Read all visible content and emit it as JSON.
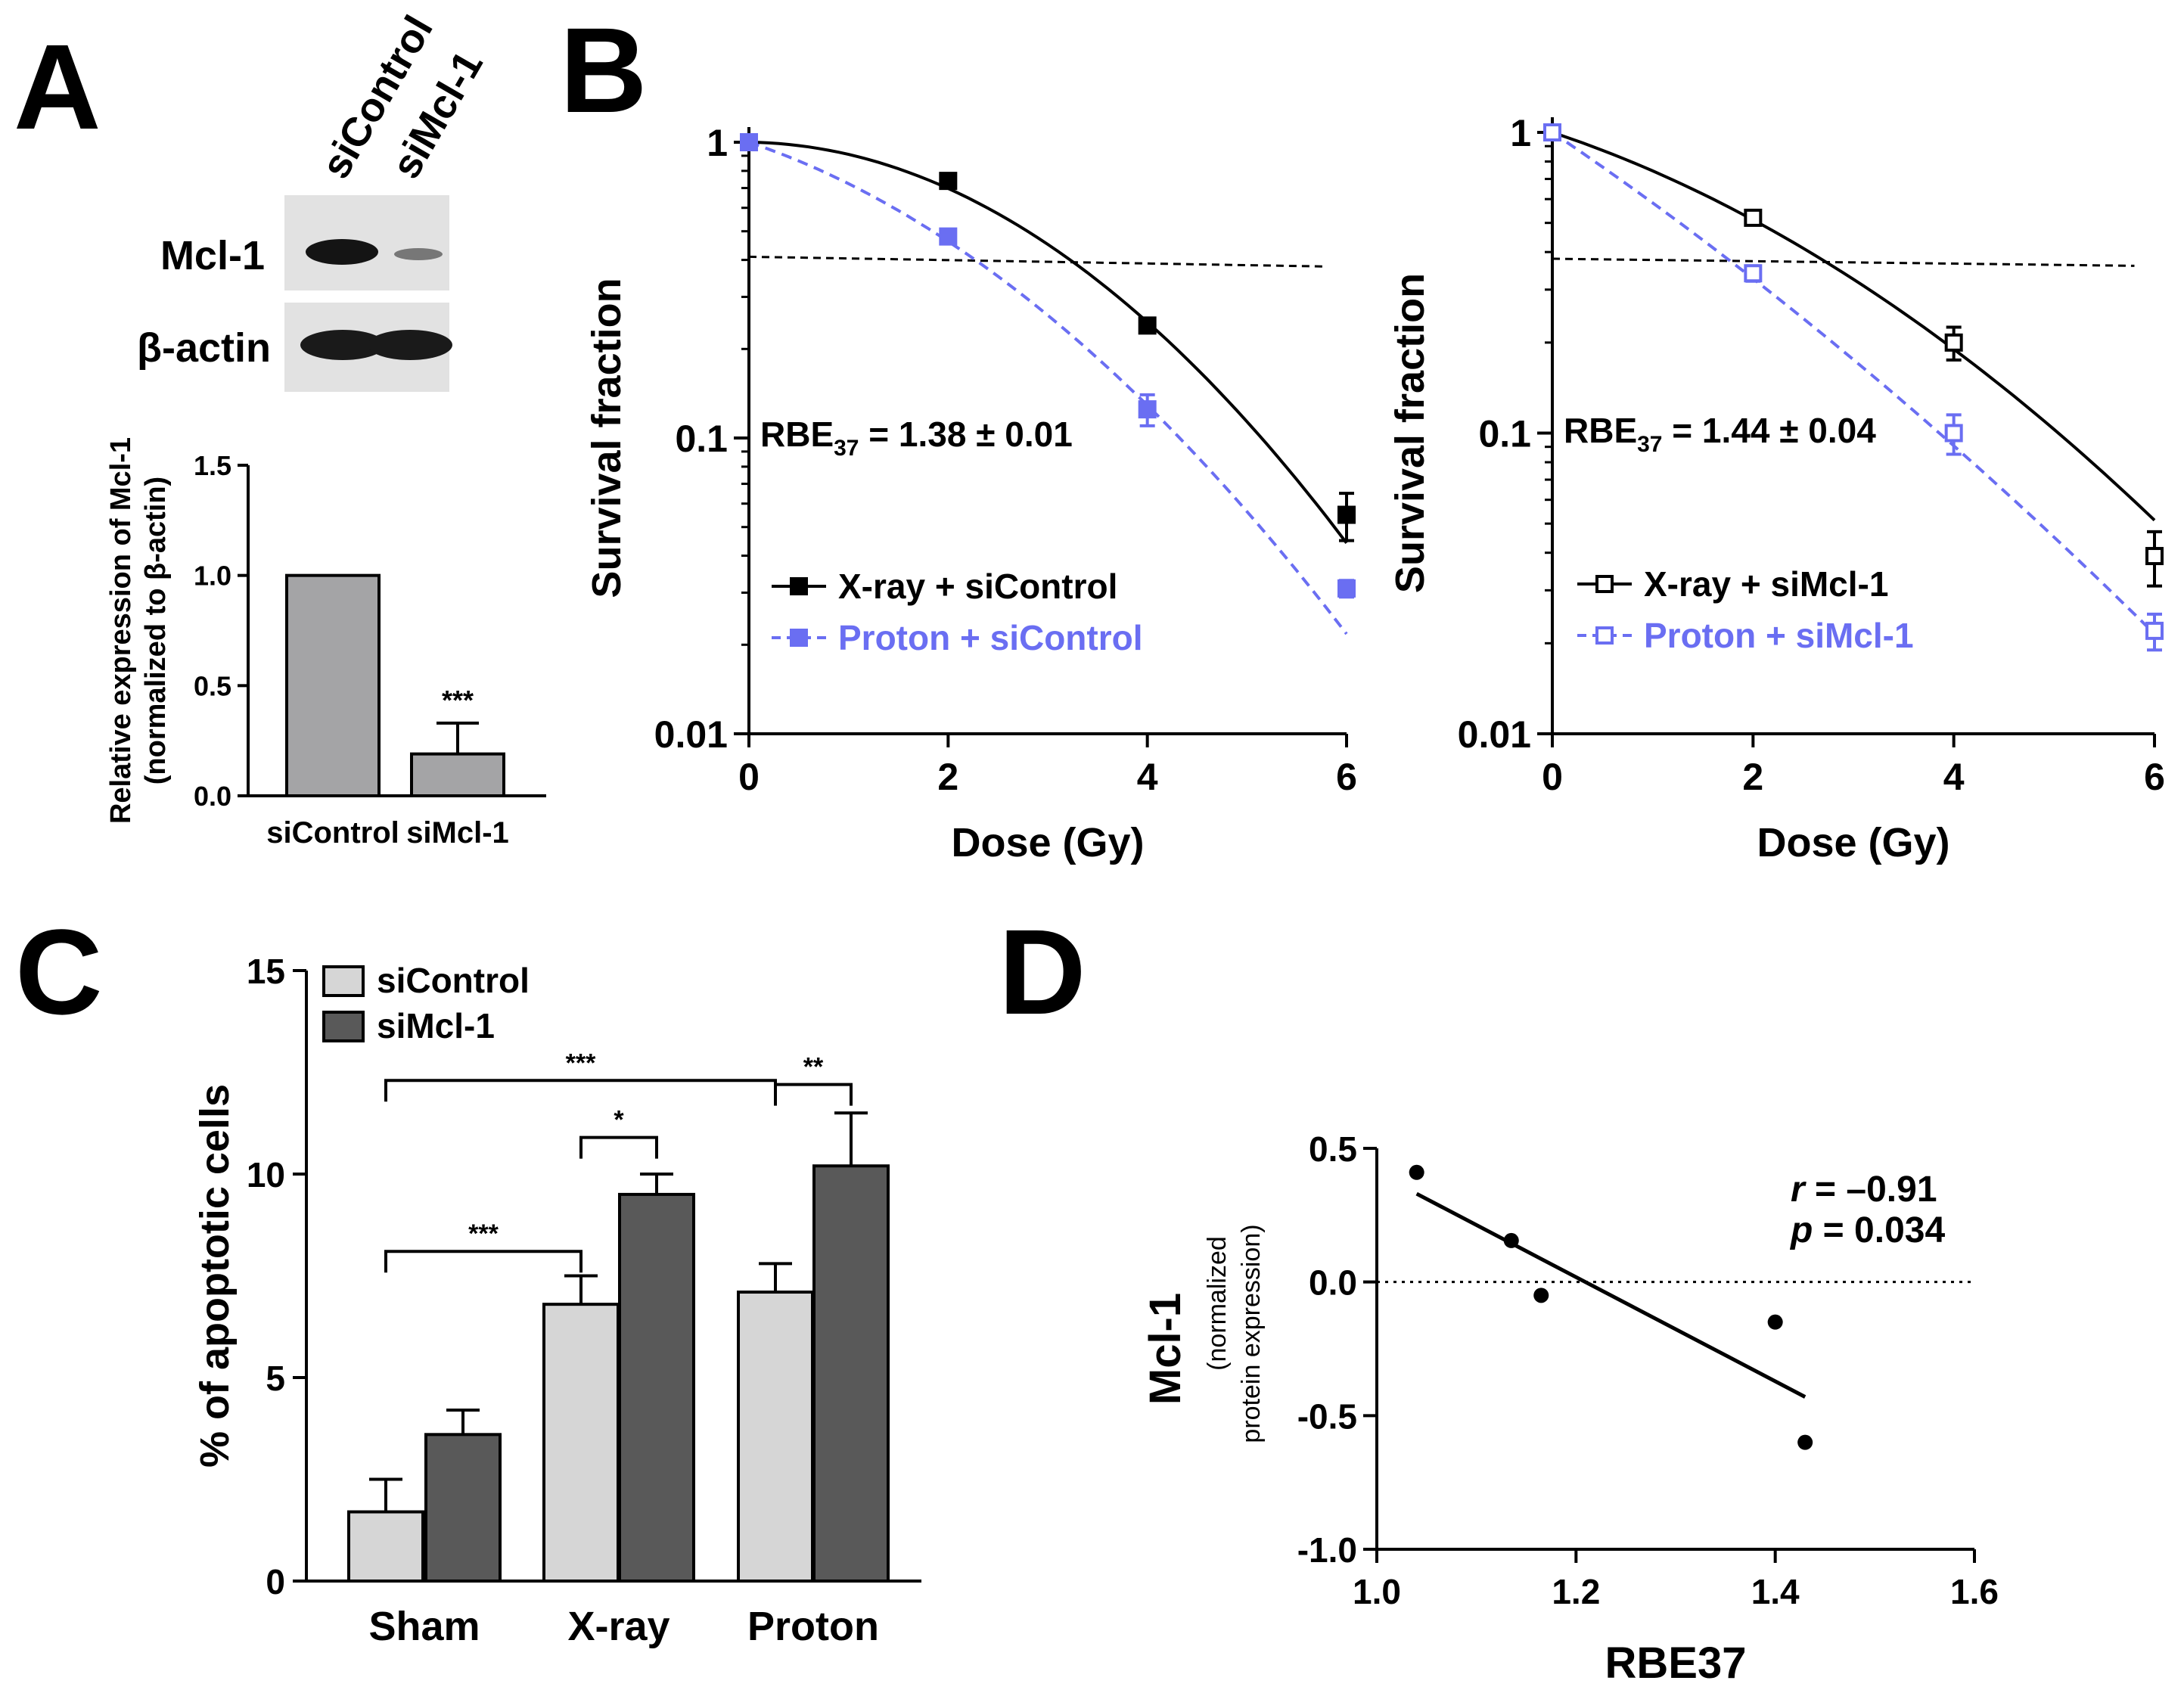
{
  "panel_labels": {
    "a": "A",
    "b": "B",
    "c": "C",
    "d": "D"
  },
  "colors": {
    "black": "#000000",
    "blue": "#6a6ef2",
    "grey_bar": "#a4a4a6",
    "light_bar": "#d6d6d6",
    "dark_bar": "#595959"
  },
  "chart_data": [
    {
      "id": "A-blot",
      "type": "other",
      "lane_labels": [
        "siControl",
        "siMcl-1"
      ],
      "row_labels": [
        "Mcl-1",
        "β-actin"
      ]
    },
    {
      "id": "A-bar",
      "type": "bar",
      "categories": [
        "siControl",
        "siMcl-1"
      ],
      "values": [
        1.0,
        0.19
      ],
      "errors": [
        0,
        0.14
      ],
      "significance": [
        "",
        "***"
      ],
      "ylabel_line1": "Relative expression of Mcl-1",
      "ylabel_line2": "(normalized to β-actin)",
      "ylim": [
        0,
        1.5
      ],
      "yticks": [
        "0.0",
        "0.5",
        "1.0",
        "1.5"
      ]
    },
    {
      "id": "B-left",
      "type": "line",
      "yscale": "log",
      "xlabel": "Dose (Gy)",
      "ylabel": "Survival fraction",
      "xlim": [
        0,
        6
      ],
      "ylim": [
        0.01,
        1
      ],
      "xticks": [
        "0",
        "2",
        "4",
        "6"
      ],
      "yticks": [
        "0.01",
        "0.1",
        "1"
      ],
      "annotation": {
        "text": "RBE",
        "sub": "37",
        "tail": " = 1.38 ± 0.01"
      },
      "series": [
        {
          "name": "X-ray + siControl",
          "marker": "filled-square",
          "line": "solid",
          "color": "#000000",
          "x": [
            0,
            2,
            4,
            6
          ],
          "y": [
            1.0,
            0.74,
            0.24,
            0.055
          ],
          "err": [
            0,
            0.03,
            0.01,
            0.01
          ],
          "fit_alpha": 0.01,
          "fit_beta": 0.085
        },
        {
          "name": "Proton + siControl",
          "marker": "filled-square",
          "line": "dashed",
          "color": "#6a6ef2",
          "x": [
            0,
            2,
            4,
            6
          ],
          "y": [
            1.0,
            0.48,
            0.125,
            0.031
          ],
          "err": [
            0,
            0.02,
            0.015,
            0.002
          ],
          "fit_alpha": 0.26,
          "fit_beta": 0.063
        }
      ],
      "threshold_y": [
        0.41,
        0.38
      ]
    },
    {
      "id": "B-right",
      "type": "line",
      "yscale": "log",
      "xlabel": "Dose (Gy)",
      "ylabel": "Survival fraction",
      "xlim": [
        0,
        6
      ],
      "ylim": [
        0.01,
        1
      ],
      "xticks": [
        "0",
        "2",
        "4",
        "6"
      ],
      "yticks": [
        "0.01",
        "0.1",
        "1"
      ],
      "annotation": {
        "text": "RBE",
        "sub": "37",
        "tail": " = 1.44 ± 0.04"
      },
      "series": [
        {
          "name": "X-ray + siMcl-1",
          "marker": "open-square",
          "line": "solid",
          "color": "#000000",
          "x": [
            0,
            2,
            4,
            6
          ],
          "y": [
            1.0,
            0.52,
            0.2,
            0.039
          ],
          "err": [
            0,
            0.02,
            0.025,
            0.008
          ],
          "fit_alpha": 0.255,
          "fit_beta": 0.04
        },
        {
          "name": "Proton + siMcl-1",
          "marker": "open-square",
          "line": "dashed",
          "color": "#6a6ef2",
          "x": [
            0,
            2,
            4,
            6
          ],
          "y": [
            1.0,
            0.34,
            0.1,
            0.022
          ],
          "err": [
            0,
            0.02,
            0.015,
            0.003
          ],
          "fit_alpha": 0.52,
          "fit_beta": 0.02
        }
      ],
      "threshold_y": [
        0.38,
        0.36
      ]
    },
    {
      "id": "C",
      "type": "bar",
      "categories": [
        "Sham",
        "X-ray",
        "Proton"
      ],
      "ylabel": "% of apoptotic cells",
      "ylim": [
        0,
        15
      ],
      "yticks": [
        "0",
        "5",
        "10",
        "15"
      ],
      "series": [
        {
          "name": "siControl",
          "color": "#d6d6d6",
          "values": [
            1.7,
            6.8,
            7.1
          ],
          "errors": [
            0.8,
            0.7,
            0.7
          ]
        },
        {
          "name": "siMcl-1",
          "color": "#595959",
          "values": [
            3.6,
            9.5,
            10.2
          ],
          "errors": [
            0.6,
            0.5,
            1.3
          ]
        }
      ],
      "brackets": [
        {
          "from": [
            0,
            0
          ],
          "to": [
            1,
            0
          ],
          "y": 8.1,
          "label": "***"
        },
        {
          "from": [
            1,
            0
          ],
          "to": [
            1,
            1
          ],
          "y": 10.9,
          "label": "*"
        },
        {
          "from": [
            0,
            0
          ],
          "to": [
            2,
            0
          ],
          "y": 12.3,
          "label": "***"
        },
        {
          "from": [
            2,
            0
          ],
          "to": [
            2,
            1
          ],
          "y": 12.2,
          "label": "**"
        }
      ]
    },
    {
      "id": "D",
      "type": "scatter",
      "xlabel": "RBE37",
      "ylabel": "Mcl-1",
      "ylabel_sub1": "(normalized",
      "ylabel_sub2": "protein expression)",
      "xlim": [
        1.0,
        1.6
      ],
      "ylim": [
        -1.0,
        0.5
      ],
      "xticks": [
        "1.0",
        "1.2",
        "1.4",
        "1.6"
      ],
      "yticks": [
        "-1.0",
        "-0.5",
        "0.0",
        "0.5"
      ],
      "x": [
        1.04,
        1.135,
        1.165,
        1.4,
        1.43
      ],
      "y": [
        0.41,
        0.155,
        -0.05,
        -0.15,
        -0.6
      ],
      "fit": {
        "x": [
          1.04,
          1.43
        ],
        "y": [
          0.33,
          -0.43
        ]
      },
      "stat_r": {
        "label": "r",
        "value": " = –0.91"
      },
      "stat_p": {
        "label": "p",
        "value": " = 0.034"
      }
    }
  ]
}
